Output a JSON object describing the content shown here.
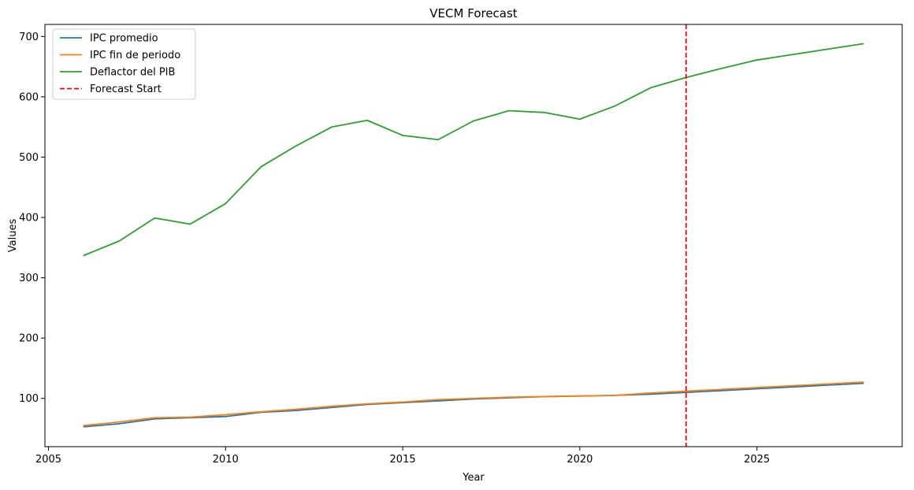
{
  "chart_data": {
    "type": "line",
    "title": "VECM Forecast",
    "xlabel": "Year",
    "ylabel": "Values",
    "xlim": [
      2004.9,
      2029.1
    ],
    "ylim": [
      20,
      720
    ],
    "xticks": [
      2005,
      2010,
      2015,
      2020,
      2025
    ],
    "yticks": [
      100,
      200,
      300,
      400,
      500,
      600,
      700
    ],
    "x": [
      2006,
      2007,
      2008,
      2009,
      2010,
      2011,
      2012,
      2013,
      2014,
      2015,
      2016,
      2017,
      2018,
      2019,
      2020,
      2021,
      2022,
      2023,
      2024,
      2025,
      2026,
      2027,
      2028
    ],
    "series": [
      {
        "name": "IPC promedio",
        "color": "#1f77b4",
        "style": "solid",
        "values": [
          53,
          58,
          66,
          68,
          70,
          77,
          80,
          85,
          90,
          93,
          96,
          99,
          101,
          103,
          104,
          105,
          107,
          110,
          113,
          116,
          119,
          122,
          125
        ]
      },
      {
        "name": "IPC fin de periodo",
        "color": "#ff7f0e",
        "style": "solid",
        "values": [
          55,
          61,
          68,
          69,
          73,
          78,
          82,
          87,
          91,
          94,
          98,
          100,
          102,
          103,
          104,
          105,
          109,
          112,
          115,
          118,
          121,
          124,
          127
        ]
      },
      {
        "name": "Deflactor del PIB",
        "color": "#2ca02c",
        "style": "solid",
        "values": [
          337,
          361,
          399,
          389,
          423,
          484,
          519,
          550,
          561,
          536,
          529,
          560,
          577,
          574,
          563,
          585,
          615,
          632,
          647,
          661,
          670,
          679,
          688
        ]
      }
    ],
    "vline": {
      "name": "Forecast Start",
      "x": 2023,
      "color": "#ff0000",
      "style": "dashed"
    },
    "legend": "top-left",
    "grid": false
  }
}
